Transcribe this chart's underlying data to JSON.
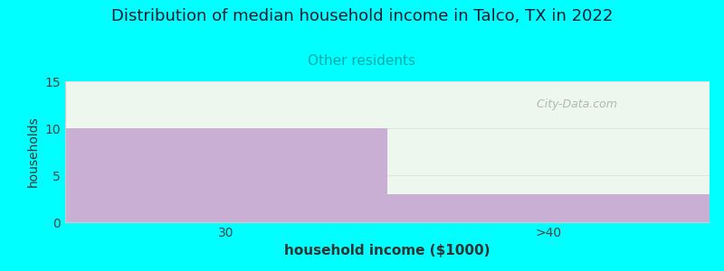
{
  "title": "Distribution of median household income in Talco, TX in 2022",
  "subtitle": "Other residents",
  "xlabel": "household income ($1000)",
  "ylabel": "households",
  "categories": [
    "30",
    ">40"
  ],
  "values": [
    10,
    3
  ],
  "bar_color": "#c9afd4",
  "background_color": "#00ffff",
  "plot_bg_color": "#edf7ed",
  "ylim": [
    0,
    15
  ],
  "yticks": [
    0,
    5,
    10,
    15
  ],
  "title_fontsize": 13,
  "title_color": "#1a1a2e",
  "subtitle_color": "#00aaaa",
  "subtitle_fontsize": 11,
  "xlabel_fontsize": 11,
  "ylabel_fontsize": 10,
  "watermark": "  City-Data.com",
  "watermark_color": "#aaaaaa"
}
